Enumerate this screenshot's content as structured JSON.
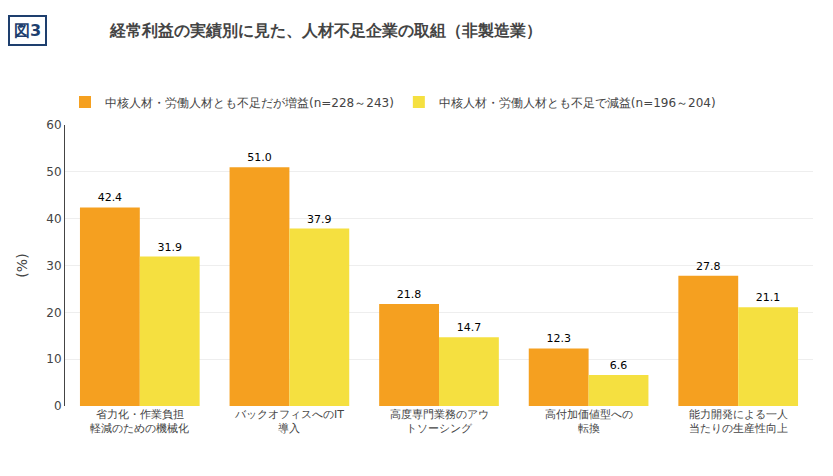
{
  "chart_data": {
    "type": "bar",
    "title": "経常利益の実績別に見た、人材不足企業の取組（非製造業）",
    "annotations": [
      {
        "text": "図3",
        "color": "#1e3f6e"
      }
    ],
    "ylabel": "(%)",
    "categories": [
      "省力化・作業負担\n軽減のための機械化",
      "バックオフィスへのIT\n導入",
      "高度専門業務のアウ\nトソーシング",
      "高付加価値型への\n転換",
      "能力開発による一人\n当たりの生産性向上"
    ],
    "series": [
      {
        "name": "中核人材・労働人材とも不足だが増益(n=228～243)",
        "color": "#F5A020",
        "values": [
          42.4,
          51.0,
          21.8,
          12.3,
          27.8
        ],
        "value_labels": [
          "42.4",
          "51.0",
          "21.8",
          "12.3",
          "27.8"
        ]
      },
      {
        "name": "中核人材・労働人材とも不足で減益(n=196～204)",
        "color": "#F5E040",
        "values": [
          31.9,
          37.9,
          14.7,
          6.6,
          21.1
        ]
      }
    ],
    "ylim": [
      0,
      60
    ],
    "yticks": [
      0,
      10,
      20,
      30,
      40,
      50,
      60
    ],
    "grid": true,
    "legend": "top",
    "data_labels": true
  }
}
